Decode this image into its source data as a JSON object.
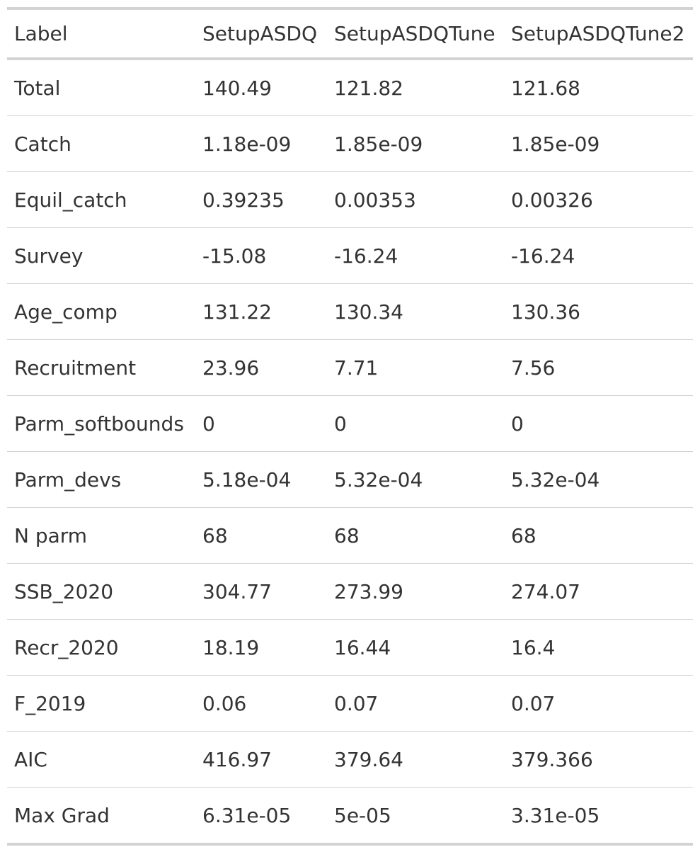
{
  "table": {
    "headers": [
      "Label",
      "SetupASDQ",
      "SetupASDQTune",
      "SetupASDQTune2"
    ],
    "rows": [
      [
        "Total",
        "140.49",
        "121.82",
        "121.68"
      ],
      [
        "Catch",
        "1.18e-09",
        "1.85e-09",
        "1.85e-09"
      ],
      [
        "Equil_catch",
        "0.39235",
        "0.00353",
        "0.00326"
      ],
      [
        "Survey",
        "-15.08",
        "-16.24",
        "-16.24"
      ],
      [
        "Age_comp",
        "131.22",
        "130.34",
        "130.36"
      ],
      [
        "Recruitment",
        "23.96",
        "7.71",
        "7.56"
      ],
      [
        "Parm_softbounds",
        "0",
        "0",
        "0"
      ],
      [
        "Parm_devs",
        "5.18e-04",
        "5.32e-04",
        "5.32e-04"
      ],
      [
        "N parm",
        "68",
        "68",
        "68"
      ],
      [
        "SSB_2020",
        "304.77",
        "273.99",
        "274.07"
      ],
      [
        "Recr_2020",
        "18.19",
        "16.44",
        "16.4"
      ],
      [
        "F_2019",
        "0.06",
        "0.07",
        "0.07"
      ],
      [
        "AIC",
        "416.97",
        "379.64",
        "379.366"
      ],
      [
        "Max Grad",
        "6.31e-05",
        "5e-05",
        "3.31e-05"
      ]
    ]
  }
}
